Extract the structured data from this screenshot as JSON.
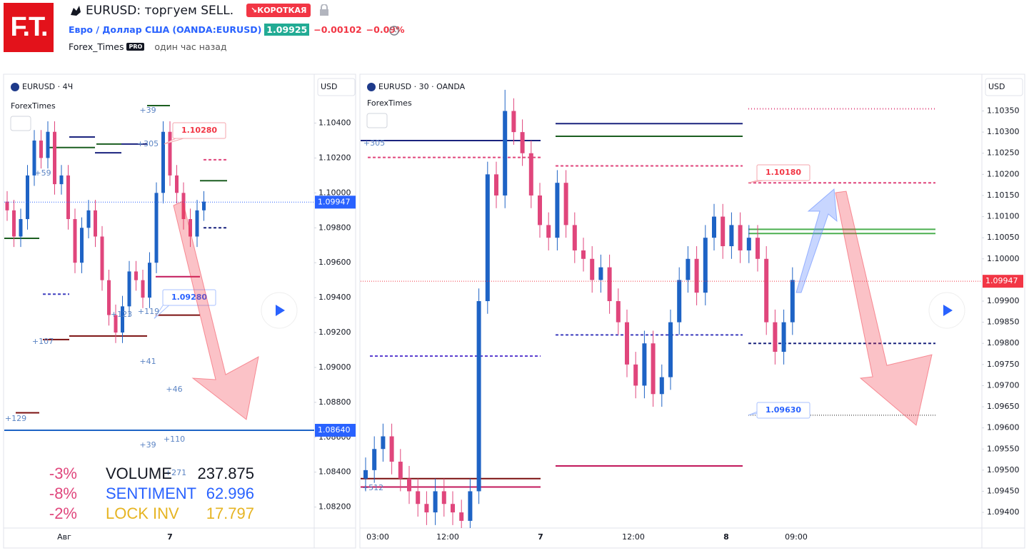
{
  "header": {
    "logo": "F.T.",
    "title": "EURUSD: торгуем SELL.",
    "badge": "↘КОРОТКАЯ",
    "symbol_name": "Евро / Доллар США",
    "symbol_code": "(OANDA:EURUSD)",
    "price": "1.09925",
    "change": "−0.00102",
    "change_pct": "−0.09%",
    "author": "Forex_Times",
    "author_badge": "PRO",
    "time": "один час назад"
  },
  "panels": [
    {
      "symbol": "EURUSD · 4Ч",
      "currency": "USD",
      "indicator": "ForexTimes",
      "ylim": [
        1.0808,
        1.1068
      ],
      "yticks": [
        {
          "value": 1.104,
          "label": "1.10400"
        },
        {
          "value": 1.102,
          "label": "1.10200"
        },
        {
          "value": 1.1,
          "label": "1.10000"
        },
        {
          "value": 1.098,
          "label": "1.09800"
        },
        {
          "value": 1.096,
          "label": "1.09600"
        },
        {
          "value": 1.094,
          "label": "1.09400"
        },
        {
          "value": 1.092,
          "label": "1.09200"
        },
        {
          "value": 1.09,
          "label": "1.09000"
        },
        {
          "value": 1.088,
          "label": "1.08800"
        },
        {
          "value": 1.086,
          "label": "1.08600"
        },
        {
          "value": 1.084,
          "label": "1.08400"
        },
        {
          "value": 1.082,
          "label": "1.08200"
        }
      ],
      "xticks": [
        "Авг",
        "7"
      ],
      "price": {
        "value": 1.09947,
        "label": "1.09947"
      },
      "level_label": {
        "value": 1.0864,
        "label": "1.08640"
      },
      "callouts": [
        {
          "value": 1.1028,
          "label": "1.10280"
        },
        {
          "value": 1.0928,
          "label": "1.09280"
        }
      ],
      "annotations": [
        "+39",
        "+305",
        "+59",
        "+119",
        "+123",
        "+107",
        "+41",
        "+46",
        "+39",
        "+110",
        "+271",
        "+129"
      ],
      "levels": [
        {
          "value": 1.0864,
          "color": "#1e63c5",
          "dash": "none"
        },
        {
          "value": 1.105,
          "color": "#1b5e20",
          "dash": "none"
        },
        {
          "value": 1.1032,
          "color": "#1a237e",
          "dash": "none"
        },
        {
          "value": 1.1026,
          "color": "#1b5e20",
          "dash": "none"
        },
        {
          "value": 1.1023,
          "color": "#1a237e",
          "dash": "none"
        },
        {
          "value": 1.1028,
          "color": "#1b5e20",
          "dash": "none"
        },
        {
          "value": 1.1028,
          "color": "#1a237e",
          "dash": "none"
        },
        {
          "value": 1.1032,
          "color": "#1a237e",
          "dash": "none"
        },
        {
          "value": 1.1019,
          "color": "#e0467c",
          "dash": "4 3"
        },
        {
          "value": 1.1007,
          "color": "#1b5e20",
          "dash": "none"
        },
        {
          "value": 1.098,
          "color": "#1a237e",
          "dash": "4 3"
        },
        {
          "value": 1.0916,
          "color": "#7b1010",
          "dash": "none"
        },
        {
          "value": 1.0918,
          "color": "#7b1010",
          "dash": "none"
        },
        {
          "value": 1.0952,
          "color": "#c2185b",
          "dash": "none"
        },
        {
          "value": 1.093,
          "color": "#7b1010",
          "dash": "none"
        },
        {
          "value": 1.0942,
          "color": "#3f3fbf",
          "dash": "4 3"
        },
        {
          "value": 1.0974,
          "color": "#1b5e20",
          "dash": "none"
        },
        {
          "value": 1.0874,
          "color": "#7b1010",
          "dash": "none"
        }
      ],
      "candles": [
        [
          1.0995,
          1.1001,
          1.0984,
          1.099
        ],
        [
          1.099,
          1.0996,
          1.0969,
          1.0975
        ],
        [
          1.0975,
          1.0991,
          1.0969,
          1.0985
        ],
        [
          1.0985,
          1.1016,
          1.0979,
          1.101
        ],
        [
          1.101,
          1.1036,
          1.1004,
          1.103
        ],
        [
          1.103,
          1.1036,
          1.1014,
          1.102
        ],
        [
          1.102,
          1.1041,
          1.1014,
          1.1035
        ],
        [
          1.1035,
          1.1041,
          1.0999,
          1.1005
        ],
        [
          1.1005,
          1.1016,
          1.0999,
          1.101
        ],
        [
          1.101,
          1.1016,
          1.0979,
          1.0985
        ],
        [
          1.0985,
          1.0991,
          1.0954,
          1.096
        ],
        [
          1.096,
          1.0986,
          1.0954,
          1.098
        ],
        [
          1.098,
          1.0996,
          1.0974,
          1.099
        ],
        [
          1.099,
          1.0996,
          1.0969,
          1.0975
        ],
        [
          1.0975,
          1.0981,
          1.0944,
          1.095
        ],
        [
          1.095,
          1.0956,
          1.0924,
          1.093
        ],
        [
          1.093,
          1.0936,
          1.0914,
          1.092
        ],
        [
          1.092,
          1.0941,
          1.0914,
          1.0935
        ],
        [
          1.0935,
          1.0961,
          1.0929,
          1.0955
        ],
        [
          1.0955,
          1.0961,
          1.0944,
          1.095
        ],
        [
          1.095,
          1.0956,
          1.0934,
          1.094
        ],
        [
          1.094,
          1.0966,
          1.0934,
          1.096
        ],
        [
          1.096,
          1.1006,
          1.0954,
          1.1
        ],
        [
          1.1,
          1.1041,
          1.0994,
          1.1035
        ],
        [
          1.1035,
          1.1041,
          1.1004,
          1.101
        ],
        [
          1.101,
          1.1016,
          1.0994,
          1.1
        ],
        [
          1.1,
          1.1006,
          1.0979,
          1.0985
        ],
        [
          1.0985,
          1.0991,
          1.0969,
          1.0975
        ],
        [
          1.0975,
          1.0996,
          1.0969,
          1.099
        ],
        [
          1.099,
          1.1001,
          1.0984,
          1.0995
        ]
      ],
      "stats": [
        {
          "pct": "-3%",
          "label": "VOLUME",
          "value": "237.875"
        },
        {
          "pct": "-8%",
          "label": "SENTIMENT",
          "value": "62.996"
        },
        {
          "pct": "-2%",
          "label": "LOCK INV",
          "value": "17.797"
        }
      ]
    },
    {
      "symbol": "EURUSD · 30 · OANDA",
      "currency": "USD",
      "indicator": "ForexTimes",
      "ylim": [
        1.09363,
        1.10437
      ],
      "yticks": [
        {
          "value": 1.1035,
          "label": "1.10350"
        },
        {
          "value": 1.103,
          "label": "1.10300"
        },
        {
          "value": 1.1025,
          "label": "1.10250"
        },
        {
          "value": 1.102,
          "label": "1.10200"
        },
        {
          "value": 1.1015,
          "label": "1.10150"
        },
        {
          "value": 1.101,
          "label": "1.10100"
        },
        {
          "value": 1.1005,
          "label": "1.10050"
        },
        {
          "value": 1.1,
          "label": "1.10000"
        },
        {
          "value": 1.099,
          "label": "1.09900"
        },
        {
          "value": 1.0985,
          "label": "1.09850"
        },
        {
          "value": 1.098,
          "label": "1.09800"
        },
        {
          "value": 1.0975,
          "label": "1.09750"
        },
        {
          "value": 1.097,
          "label": "1.09700"
        },
        {
          "value": 1.0965,
          "label": "1.09650"
        },
        {
          "value": 1.096,
          "label": "1.09600"
        },
        {
          "value": 1.0955,
          "label": "1.09550"
        },
        {
          "value": 1.095,
          "label": "1.09500"
        },
        {
          "value": 1.0945,
          "label": "1.09450"
        },
        {
          "value": 1.094,
          "label": "1.09400"
        }
      ],
      "xticks": [
        "03:00",
        "12:00",
        "7",
        "12:00",
        "8",
        "09:00"
      ],
      "price": {
        "value": 1.09947,
        "label": "1.09947"
      },
      "callouts": [
        {
          "value": 1.1018,
          "label": "1.10180"
        },
        {
          "value": 1.0963,
          "label": "1.09630"
        }
      ],
      "annotations": [
        "+305",
        "+512"
      ],
      "levels": [
        {
          "value": 1.10355,
          "color": "#e0467c",
          "dash": "1 3"
        },
        {
          "value": 1.1032,
          "color": "#1a237e",
          "dash": "none"
        },
        {
          "value": 1.1029,
          "color": "#1b5e20",
          "dash": "none"
        },
        {
          "value": 1.1028,
          "color": "#1a237e",
          "dash": "none"
        },
        {
          "value": 1.1022,
          "color": "#e0467c",
          "dash": "4 3"
        },
        {
          "value": 1.1024,
          "color": "#e0467c",
          "dash": "4 3"
        },
        {
          "value": 1.1018,
          "color": "#e0467c",
          "dash": "4 3"
        },
        {
          "value": 1.1007,
          "color": "#4caf50",
          "dash": "none"
        },
        {
          "value": 1.1006,
          "color": "#4caf50",
          "dash": "none"
        },
        {
          "value": 1.0982,
          "color": "#3f3fbf",
          "dash": "4 3"
        },
        {
          "value": 1.098,
          "color": "#1a237e",
          "dash": "4 3"
        },
        {
          "value": 1.0977,
          "color": "#5b3fd0",
          "dash": "4 3"
        },
        {
          "value": 1.0963,
          "color": "#888888",
          "dash": "1 2"
        },
        {
          "value": 1.0951,
          "color": "#c2185b",
          "dash": "none"
        },
        {
          "value": 1.0948,
          "color": "#7b1010",
          "dash": "none"
        },
        {
          "value": 1.0946,
          "color": "#c2185b",
          "dash": "none"
        }
      ],
      "candles": [
        [
          1.0948,
          1.0953,
          1.0945,
          1.095
        ],
        [
          1.095,
          1.0958,
          1.0947,
          1.0955
        ],
        [
          1.0955,
          1.0961,
          1.0952,
          1.0958
        ],
        [
          1.0958,
          1.0961,
          1.0949,
          1.0952
        ],
        [
          1.0952,
          1.0955,
          1.0945,
          1.0948
        ],
        [
          1.0948,
          1.0951,
          1.0942,
          1.0945
        ],
        [
          1.0945,
          1.0948,
          1.0939,
          1.0942
        ],
        [
          1.0942,
          1.0945,
          1.0937,
          1.094
        ],
        [
          1.094,
          1.0948,
          1.0937,
          1.0945
        ],
        [
          1.0945,
          1.0948,
          1.0939,
          1.0942
        ],
        [
          1.0942,
          1.0945,
          1.0937,
          1.094
        ],
        [
          1.094,
          1.0943,
          1.0935,
          1.0938
        ],
        [
          1.0938,
          1.0948,
          1.0935,
          1.0945
        ],
        [
          1.0945,
          1.0993,
          1.0942,
          1.099
        ],
        [
          1.099,
          1.1023,
          1.0987,
          1.102
        ],
        [
          1.102,
          1.1023,
          1.1012,
          1.1015
        ],
        [
          1.1015,
          1.104,
          1.1012,
          1.1035
        ],
        [
          1.1035,
          1.1038,
          1.1027,
          1.103
        ],
        [
          1.103,
          1.1033,
          1.1022,
          1.1025
        ],
        [
          1.1025,
          1.1028,
          1.1012,
          1.1015
        ],
        [
          1.1015,
          1.1018,
          1.1005,
          1.1008
        ],
        [
          1.1008,
          1.1011,
          1.1002,
          1.1005
        ],
        [
          1.1005,
          1.1021,
          1.1002,
          1.1018
        ],
        [
          1.1018,
          1.1021,
          1.1005,
          1.1008
        ],
        [
          1.1008,
          1.1011,
          1.0999,
          1.1002
        ],
        [
          1.1002,
          1.1005,
          1.0997,
          1.1
        ],
        [
          1.1,
          1.1003,
          1.0992,
          1.0995
        ],
        [
          1.0995,
          1.1001,
          1.0992,
          1.0998
        ],
        [
          1.0998,
          1.1001,
          1.0987,
          1.099
        ],
        [
          1.099,
          1.0993,
          1.0982,
          1.0985
        ],
        [
          1.0985,
          1.0988,
          1.0972,
          1.0975
        ],
        [
          1.0975,
          1.0978,
          1.0967,
          1.097
        ],
        [
          1.097,
          1.0983,
          1.0967,
          1.098
        ],
        [
          1.098,
          1.0983,
          1.0965,
          1.0968
        ],
        [
          1.0968,
          1.0975,
          1.0965,
          1.0972
        ],
        [
          1.0972,
          1.0988,
          1.0969,
          1.0985
        ],
        [
          1.0985,
          1.0998,
          1.0982,
          1.0995
        ],
        [
          1.0995,
          1.1003,
          1.0992,
          1.1
        ],
        [
          1.1,
          1.1003,
          1.0989,
          1.0992
        ],
        [
          1.0992,
          1.1008,
          1.0989,
          1.1005
        ],
        [
          1.1005,
          1.1013,
          1.1002,
          1.101
        ],
        [
          1.101,
          1.1013,
          1.1,
          1.1003
        ],
        [
          1.1003,
          1.1011,
          1.1,
          1.1008
        ],
        [
          1.1008,
          1.1011,
          1.0999,
          1.1002
        ],
        [
          1.1002,
          1.1008,
          1.0999,
          1.1005
        ],
        [
          1.1005,
          1.1008,
          1.0997,
          1.1
        ],
        [
          1.1,
          1.1003,
          1.0982,
          1.0985
        ],
        [
          1.0985,
          1.0988,
          1.0975,
          1.0978
        ],
        [
          1.0978,
          1.0988,
          1.0975,
          1.0985
        ],
        [
          1.0985,
          1.0998,
          1.0982,
          1.0995
        ]
      ]
    }
  ]
}
